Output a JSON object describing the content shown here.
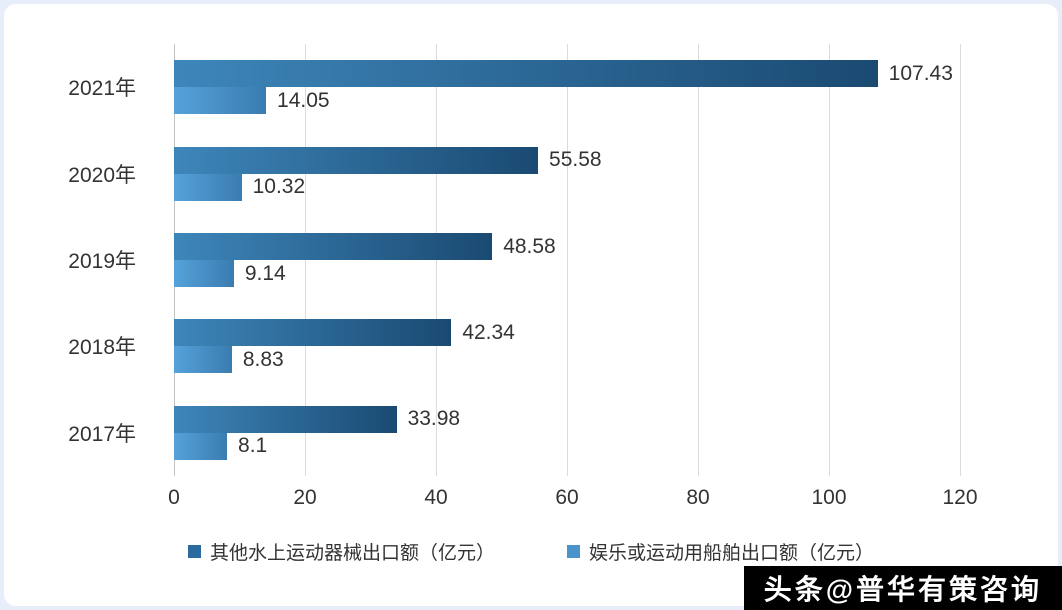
{
  "chart_data": {
    "type": "bar",
    "orientation": "horizontal",
    "title": "",
    "xlabel": "",
    "ylabel": "",
    "categories": [
      "2021年",
      "2020年",
      "2019年",
      "2018年",
      "2017年"
    ],
    "series": [
      {
        "name": "其他水上运动器械出口额（亿元）",
        "values": [
          107.43,
          55.58,
          48.58,
          42.34,
          33.98
        ],
        "gradient": [
          "#3e86ba",
          "#1a4a72"
        ],
        "legend_color": "#2b6a9e"
      },
      {
        "name": "娱乐或运动用船舶出口额（亿元）",
        "values": [
          14.05,
          10.32,
          9.14,
          8.83,
          8.1
        ],
        "gradient": [
          "#55a2da",
          "#3a7cb0"
        ],
        "legend_color": "#4a94cc"
      }
    ],
    "xlim": [
      0,
      120
    ],
    "xticks": [
      0,
      20,
      40,
      60,
      80,
      100,
      120
    ],
    "grid": "vertical",
    "legend_position": "bottom"
  },
  "watermark": {
    "text": "头条@普华有策咨询"
  }
}
